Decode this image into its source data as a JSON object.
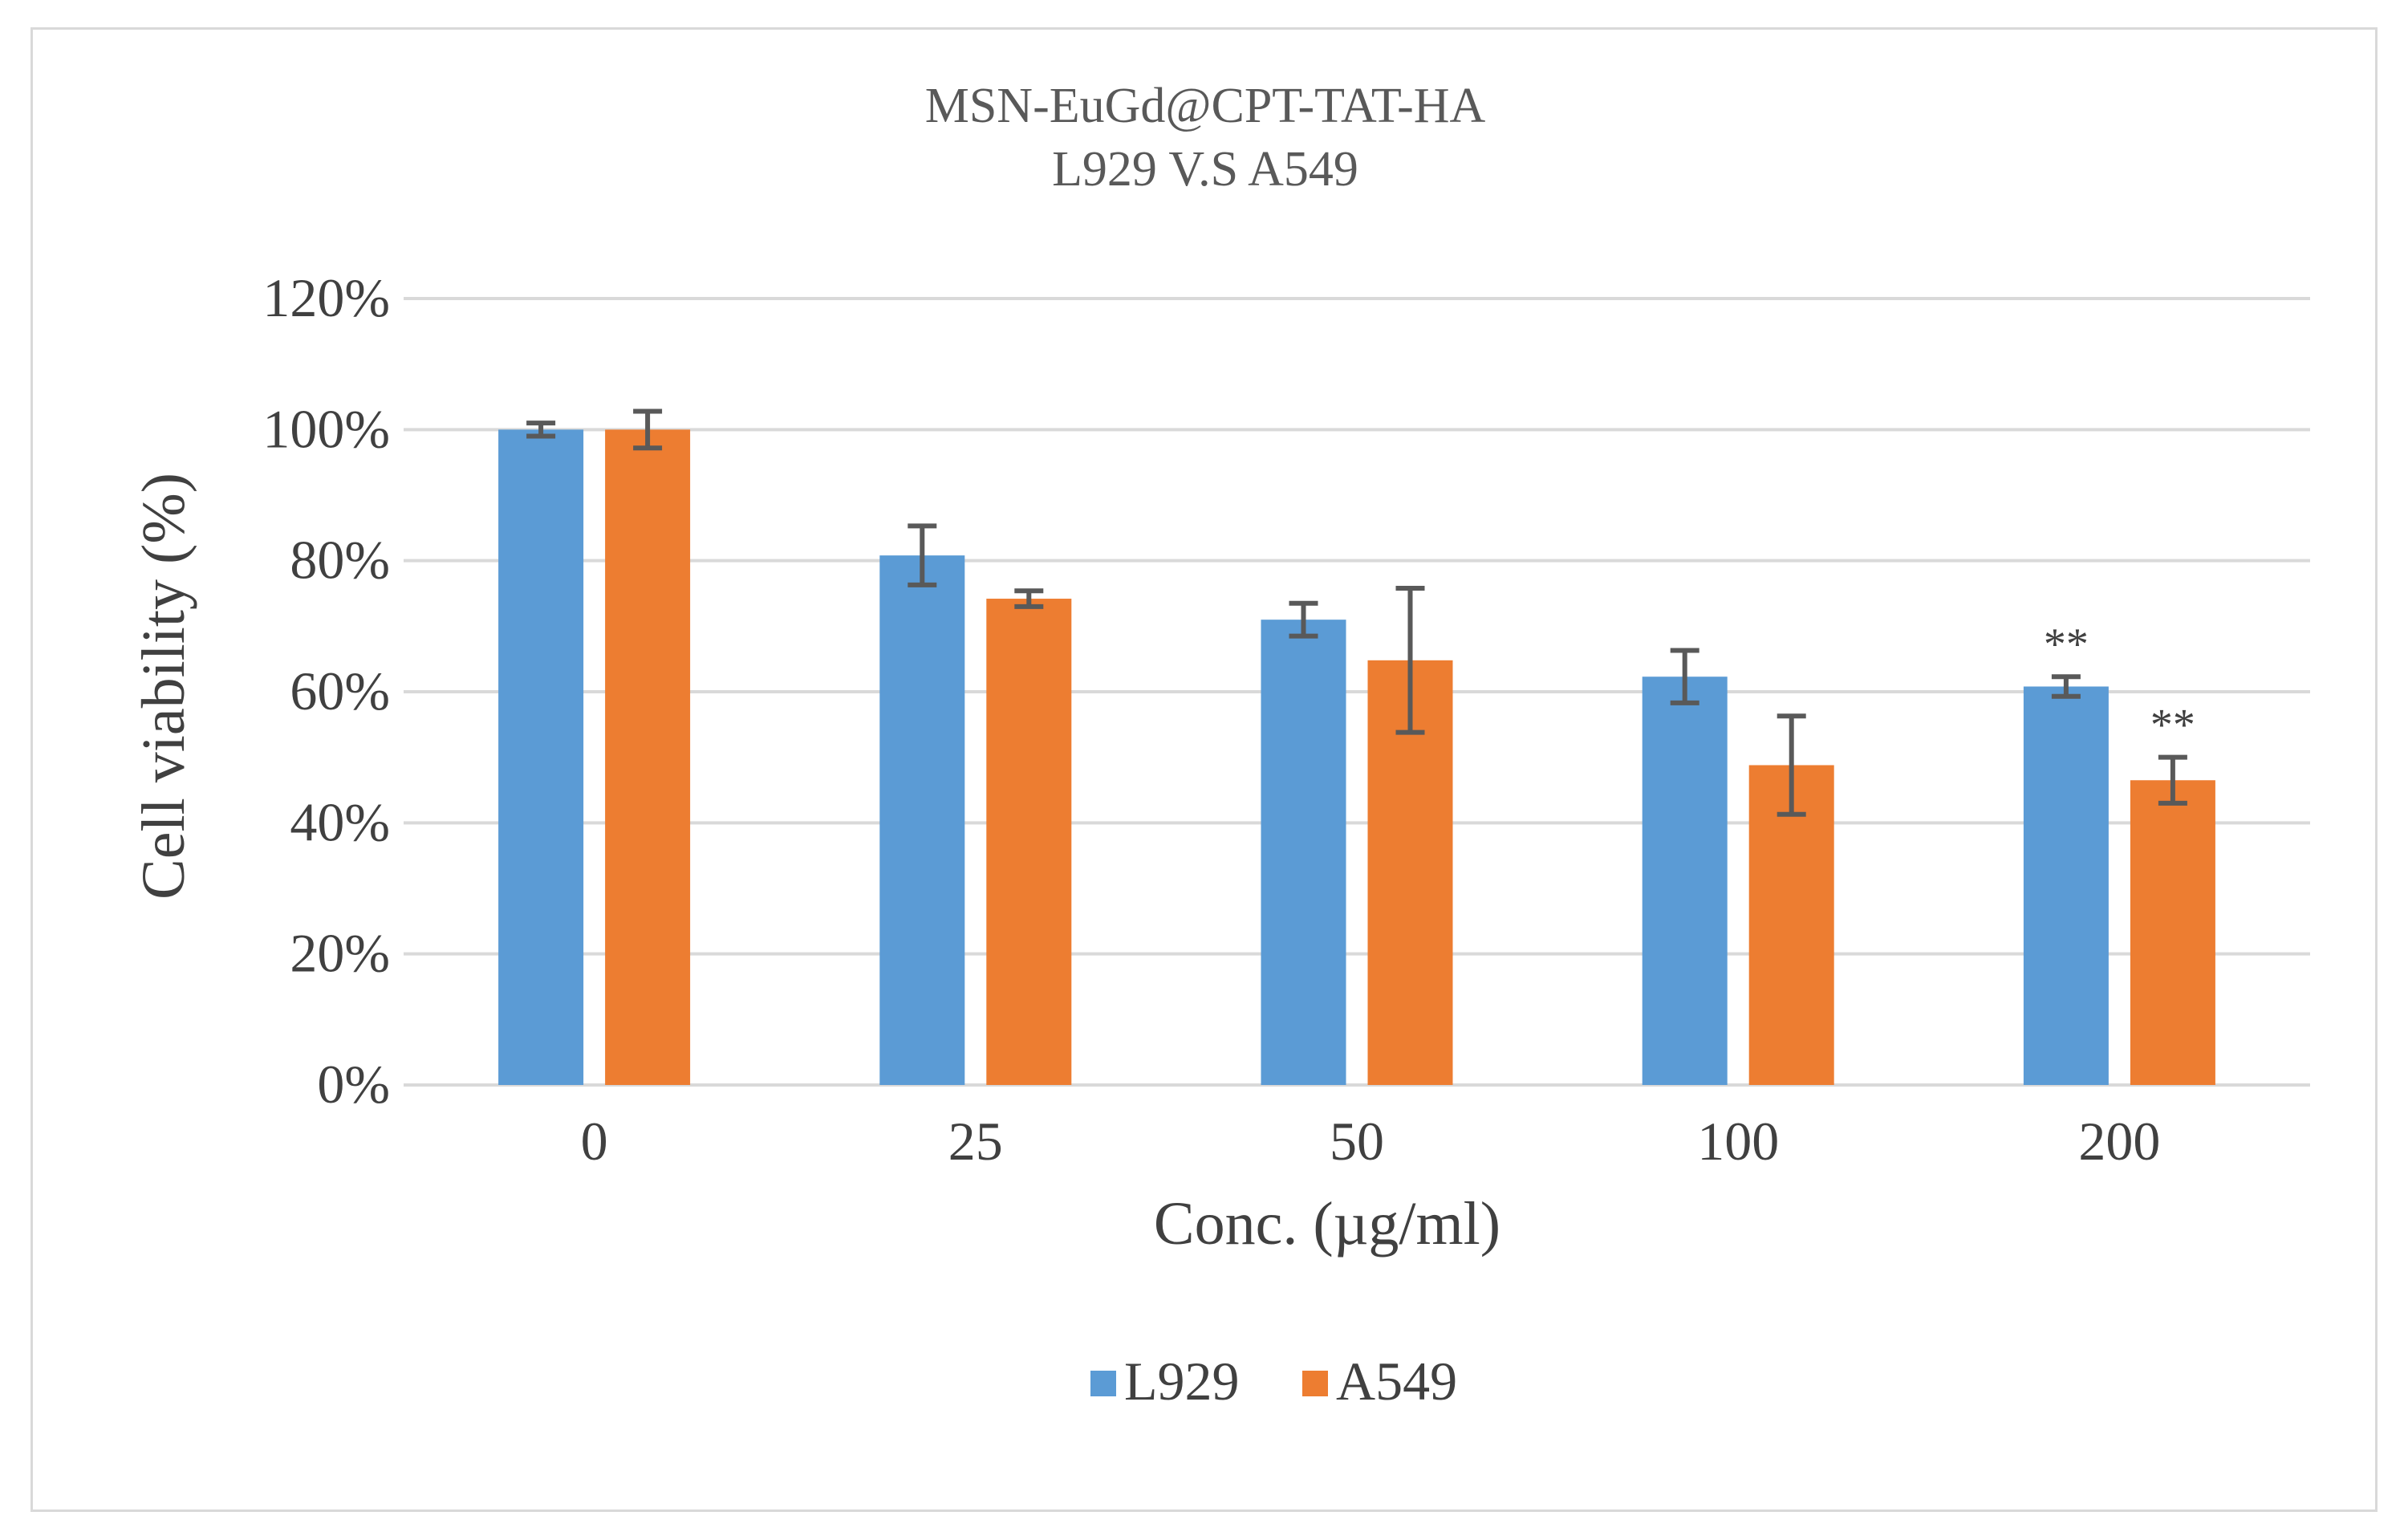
{
  "chart_data": {
    "type": "bar",
    "title": "MSN-EuGd@CPT-TAT-HA",
    "subtitle": "L929 V.S A549",
    "xlabel": "Conc. (µg/ml)",
    "ylabel": "Cell viability (%)",
    "categories": [
      "0",
      "25",
      "50",
      "100",
      "200"
    ],
    "ylim": [
      0,
      1.2
    ],
    "yticks": [
      0,
      0.2,
      0.4,
      0.6,
      0.8,
      1.0,
      1.2
    ],
    "ytick_labels": [
      "0%",
      "20%",
      "40%",
      "60%",
      "80%",
      "100%",
      "120%"
    ],
    "grid": "horizontal",
    "legend_position": "bottom",
    "series": [
      {
        "name": "L929",
        "color": "#5b9bd5",
        "values": [
          1.0,
          0.808,
          0.71,
          0.623,
          0.608
        ],
        "errors": [
          0.01,
          0.045,
          0.025,
          0.04,
          0.015
        ],
        "annotations": [
          "",
          "",
          "",
          "",
          "**"
        ]
      },
      {
        "name": "A549",
        "color": "#ed7d31",
        "values": [
          1.0,
          0.742,
          0.648,
          0.488,
          0.465
        ],
        "errors": [
          0.028,
          0.012,
          0.11,
          0.075,
          0.035
        ],
        "annotations": [
          "",
          "",
          "",
          "",
          "**"
        ]
      }
    ]
  }
}
